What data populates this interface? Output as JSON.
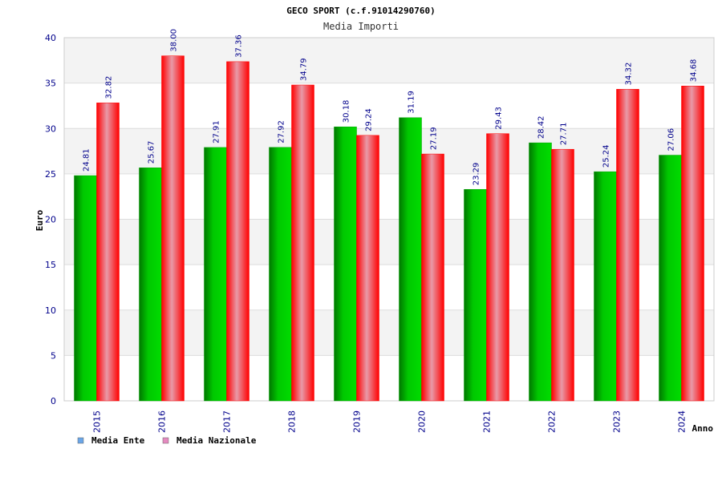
{
  "chart_data": {
    "type": "bar",
    "title": "GECO SPORT (c.f.91014290760)",
    "subtitle": "Media Importi",
    "xlabel": "Anno",
    "ylabel": "Euro",
    "ylim": [
      0,
      40
    ],
    "yticks": [
      0,
      5,
      10,
      15,
      20,
      25,
      30,
      35,
      40
    ],
    "grid": true,
    "legend_position": "bottom-left",
    "categories": [
      "2015",
      "2016",
      "2017",
      "2018",
      "2019",
      "2020",
      "2021",
      "2022",
      "2023",
      "2024"
    ],
    "series": [
      {
        "name": "Media Ente",
        "color": "#00cc00",
        "legend_color": "#6aa6e8",
        "values": [
          24.81,
          25.67,
          27.91,
          27.92,
          30.18,
          31.19,
          23.29,
          28.42,
          25.24,
          27.06
        ],
        "labels": [
          "24.81",
          "25.67",
          "27.91",
          "27.92",
          "30.18",
          "31.19",
          "23.29",
          "28.42",
          "25.24",
          "27.06"
        ]
      },
      {
        "name": "Media Nazionale",
        "color": "#ff1a1a",
        "legend_color": "#e58ac0",
        "values": [
          32.82,
          38.0,
          37.36,
          34.79,
          29.24,
          27.19,
          29.43,
          27.71,
          34.32,
          34.68
        ],
        "labels": [
          "32.82",
          "38.00",
          "37.36",
          "34.79",
          "29.24",
          "27.19",
          "29.43",
          "27.71",
          "34.32",
          "34.68"
        ]
      }
    ]
  }
}
